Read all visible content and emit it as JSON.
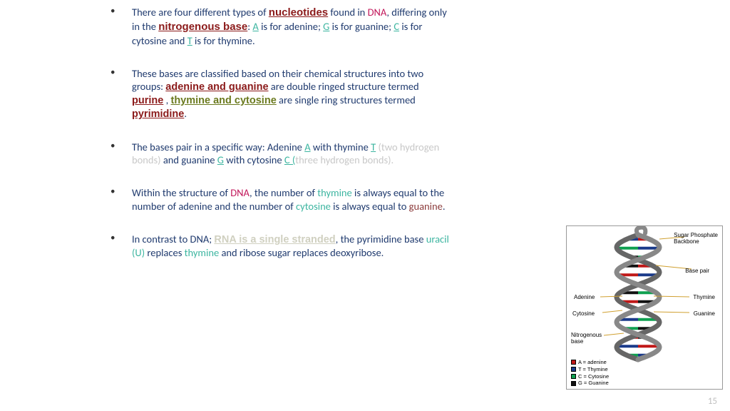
{
  "bullets": [
    {
      "segments": [
        {
          "t": "There are four different types of ",
          "c": "navy"
        },
        {
          "t": "nucleotides",
          "c": "brick-bold-lg"
        },
        {
          "t": " found in ",
          "c": "navy"
        },
        {
          "t": "DNA",
          "c": "magenta"
        },
        {
          "t": ", differing only in the ",
          "c": "navy"
        },
        {
          "t": "nitrogenous base",
          "c": "brick-bold-lg"
        },
        {
          "t": ": ",
          "c": "navy"
        },
        {
          "t": "A",
          "c": "teal-u"
        },
        {
          "t": " is for adenine; ",
          "c": "navy"
        },
        {
          "t": "G",
          "c": "teal-u"
        },
        {
          "t": " is for guanine; ",
          "c": "navy"
        },
        {
          "t": "C",
          "c": "teal-u"
        },
        {
          "t": " is for cytosine and ",
          "c": "navy"
        },
        {
          "t": "T",
          "c": "teal-u"
        },
        {
          "t": " is for thymine.",
          "c": "navy"
        }
      ]
    },
    {
      "segments": [
        {
          "t": "These bases are classified based on their chemical structures into two groups: ",
          "c": "navy"
        },
        {
          "t": "adenine and guanine",
          "c": "brick-bold"
        },
        {
          "t": " are double ringed structure termed ",
          "c": "navy"
        },
        {
          "t": "purine",
          "c": "brick-bold"
        },
        {
          "t": " , ",
          "c": "navy"
        },
        {
          "t": "thymine and cytosine",
          "c": "olive-bold"
        },
        {
          "t": " are single ring structures termed ",
          "c": "navy"
        },
        {
          "t": "pyrimidine",
          "c": "brick-bold"
        },
        {
          "t": ".",
          "c": "navy"
        }
      ]
    },
    {
      "segments": [
        {
          "t": "The bases pair in a specific way: Adenine ",
          "c": "navy"
        },
        {
          "t": "A",
          "c": "teal-u"
        },
        {
          "t": " with thymine  ",
          "c": "navy"
        },
        {
          "t": "T",
          "c": "teal-u"
        },
        {
          "t": " ",
          "c": "navy"
        },
        {
          "t": "(two hydrogen bonds)",
          "c": "faint-gray"
        },
        {
          "t": " and guanine ",
          "c": "navy"
        },
        {
          "t": "G",
          "c": "teal-u"
        },
        {
          "t": " with cytosine ",
          "c": "navy"
        },
        {
          "t": "C (",
          "c": "teal-u"
        },
        {
          "t": "three hydrogen bonds).",
          "c": "faint-gray"
        }
      ]
    },
    {
      "segments": [
        {
          "t": "Within the structure of ",
          "c": "navy"
        },
        {
          "t": "DNA",
          "c": "magenta"
        },
        {
          "t": ", the number of ",
          "c": "navy"
        },
        {
          "t": "thymine",
          "c": "teal"
        },
        {
          "t": " is always equal to the number of adenine and the number of ",
          "c": "navy"
        },
        {
          "t": "cytosine",
          "c": "teal"
        },
        {
          "t": " is always equal to ",
          "c": "navy"
        },
        {
          "t": "guanine",
          "c": "maroon"
        },
        {
          "t": ".",
          "c": "navy"
        }
      ]
    },
    {
      "segments": [
        {
          "t": "In contrast to DNA;  ",
          "c": "navy"
        },
        {
          "t": "RNA is a single stranded",
          "c": "faint-bold"
        },
        {
          "t": ", the pyrimidine base ",
          "c": "navy"
        },
        {
          "t": "uracil (U)",
          "c": "teal"
        },
        {
          "t": " replaces ",
          "c": "navy"
        },
        {
          "t": "thymine",
          "c": "teal"
        },
        {
          "t": " and ribose sugar replaces deoxyribose.",
          "c": "navy"
        }
      ]
    }
  ],
  "figure": {
    "callouts": {
      "sugar_phosphate": "Sugar Phosphate",
      "backbone": "Backbone",
      "base_pair": "Base pair",
      "adenine": "Adenine",
      "thymine": "Thymine",
      "cytosine": "Cytosine",
      "guanine": "Guanine",
      "nitrogenous": "Nitrogenous",
      "base": "base"
    },
    "legend": [
      {
        "color": "#c01818",
        "label": "A = adenine"
      },
      {
        "color": "#1a3a8a",
        "label": "T = Thymine"
      },
      {
        "color": "#0fa050",
        "label": "C = Cytosine"
      },
      {
        "color": "#111111",
        "label": "G = Guanine"
      }
    ],
    "helix_colors": {
      "backbone1": "#888888",
      "backbone2": "#666666",
      "rung_a": "#c01818",
      "rung_t": "#1a3a8a",
      "rung_c": "#0fa050",
      "rung_g": "#111111",
      "callout_line": "#d0a030"
    }
  },
  "page_number": "15"
}
